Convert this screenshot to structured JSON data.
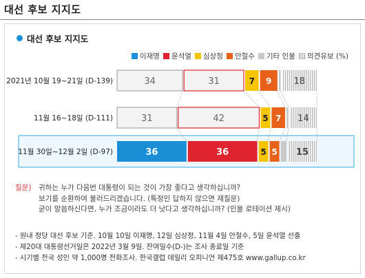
{
  "page_title": "대선 후보 지지도",
  "chart_title": "대선 후보 지지도",
  "legend": [
    {
      "label": "이재명",
      "color": "#1a8fd6",
      "style": "solid"
    },
    {
      "label": "윤석열",
      "color": "#e0242f",
      "style": "solid"
    },
    {
      "label": "심상정",
      "color": "#f7c400",
      "style": "solid"
    },
    {
      "label": "안철수",
      "color": "#e8611a",
      "style": "solid"
    },
    {
      "label": "기타 인물",
      "color": "#c9c9c9",
      "style": "solid"
    },
    {
      "label": "의견유보 (%)",
      "color": "#bdbdbd",
      "style": "hatch"
    }
  ],
  "chart_data": {
    "type": "bar",
    "stacked": true,
    "orientation": "horizontal",
    "title": "대선 후보 지지도",
    "categories": [
      "2021년 10월 19~21일 (D-139)",
      "11월 16~18일 (D-111)",
      "11월 30일~12월 2일 (D-97)"
    ],
    "series": [
      {
        "name": "이재명",
        "values": [
          34,
          31,
          36
        ]
      },
      {
        "name": "윤석열",
        "values": [
          31,
          42,
          36
        ]
      },
      {
        "name": "심상정",
        "values": [
          7,
          5,
          5
        ]
      },
      {
        "name": "안철수",
        "values": [
          9,
          7,
          5
        ]
      },
      {
        "name": "기타 인물",
        "values": [
          1,
          1,
          3
        ]
      },
      {
        "name": "의견유보 (%)",
        "values": [
          18,
          14,
          15
        ]
      }
    ],
    "highlight_category": 2,
    "legend_position": "top-right",
    "grid": false
  },
  "question": {
    "label": "질문)",
    "lines": [
      "귀하는 누가 다음번 대통령이 되는 것이 가장 좋다고 생각하십니까?",
      "보기를 순환하여 불러드리겠습니다. (특정인 답하지 않으면 재질문)",
      "굳이 말씀하신다면, 누가 조금이라도 더 낫다고 생각하십니까? (인물 로테이션 제시)"
    ]
  },
  "footnotes": [
    "- 원내 정당 대선 후보 기준. 10월 10일 이재명, 12일 심상정, 11월 4일 안철수, 5일 윤석열 선출",
    "- 제20대 대통령선거일은 2022년 3월 9일. 잔여일수(D-)는 조사 종료일 기준",
    "- 시기별 전국 성인 약 1,000명 전화조사. 한국갤럽 데일리 오피니언 제475호 www.gallup.co.kr"
  ]
}
